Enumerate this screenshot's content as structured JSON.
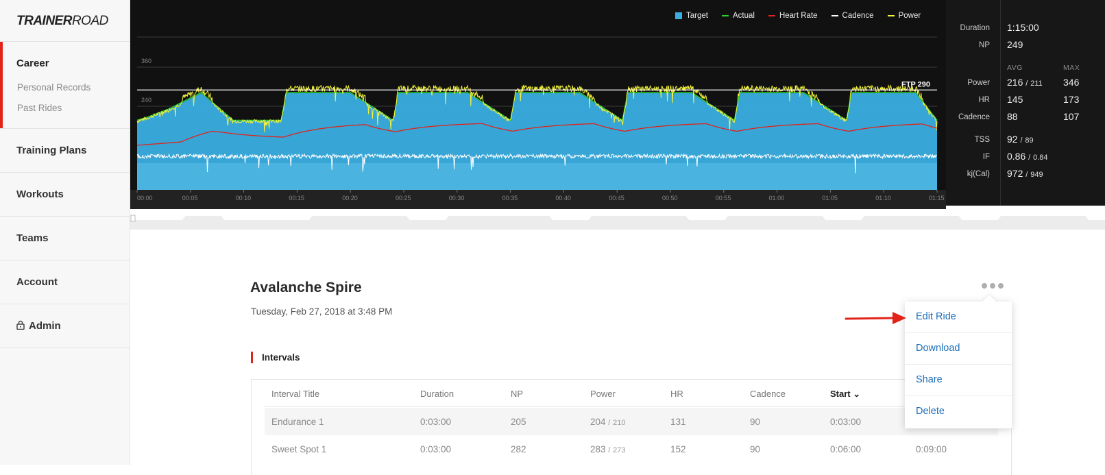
{
  "sidebar": {
    "logo": {
      "bold": "TRAINER",
      "light": "ROAD"
    },
    "career": {
      "label": "Career",
      "items": [
        "Personal Records",
        "Past Rides"
      ]
    },
    "nav": [
      "Training Plans",
      "Workouts",
      "Teams",
      "Account"
    ],
    "admin": "Admin"
  },
  "chart": {
    "legend": [
      "Target",
      "Actual",
      "Heart Rate",
      "Cadence",
      "Power"
    ],
    "ftp_label": "FTP 290",
    "colors": {
      "target": "#3aaee0",
      "actual": "#2bd12b",
      "heart_rate": "#e2231a",
      "cadence": "#ffffff",
      "power": "#f2f23a",
      "background": "#111111"
    }
  },
  "chart_data": {
    "type": "area",
    "x_ticks": [
      "00:00",
      "00:05",
      "00:10",
      "00:15",
      "00:20",
      "00:25",
      "00:30",
      "00:35",
      "00:40",
      "00:45",
      "00:50",
      "00:55",
      "01:00",
      "01:05",
      "01:10",
      "01:15"
    ],
    "y_ticks": [
      240,
      360
    ],
    "ftp": 290,
    "xlim": [
      0,
      75
    ],
    "target_power_profile": {
      "x": [
        0,
        1,
        3,
        6,
        9,
        13.5,
        14,
        20,
        24,
        24.5,
        31,
        35,
        35.5,
        41.5,
        45.5,
        46,
        52,
        56,
        56.5,
        62.5,
        66.5,
        67,
        73,
        75
      ],
      "y": [
        195,
        205,
        230,
        280,
        195,
        195,
        280,
        280,
        195,
        280,
        280,
        195,
        280,
        280,
        195,
        280,
        280,
        195,
        280,
        280,
        195,
        280,
        280,
        195
      ]
    },
    "series": [
      {
        "name": "Target"
      },
      {
        "name": "Actual"
      },
      {
        "name": "Heart Rate"
      },
      {
        "name": "Cadence"
      },
      {
        "name": "Power"
      }
    ]
  },
  "stats": {
    "duration_label": "Duration",
    "duration": "1:15:00",
    "np_label": "NP",
    "np": "249",
    "avg_header": "AVG",
    "max_header": "MAX",
    "power_label": "Power",
    "power_avg": "216",
    "power_avg_target": "211",
    "power_max": "346",
    "hr_label": "HR",
    "hr_avg": "145",
    "hr_max": "173",
    "cadence_label": "Cadence",
    "cadence_avg": "88",
    "cadence_max": "107",
    "tss_label": "TSS",
    "tss": "92",
    "tss_target": "89",
    "if_label": "IF",
    "if": "0.86",
    "if_target": "0.84",
    "kj_label": "kj(Cal)",
    "kj": "972",
    "kj_target": "949",
    "slash": "/"
  },
  "ride": {
    "title": "Avalanche Spire",
    "date": "Tuesday, Feb 27, 2018 at 3:48 PM",
    "intervals_heading": "Intervals"
  },
  "table": {
    "headers": [
      "Interval Title",
      "Duration",
      "NP",
      "Power",
      "HR",
      "Cadence",
      "Start"
    ],
    "sort_indicator": "⌄",
    "rows": [
      {
        "title": "Endurance 1",
        "duration": "0:03:00",
        "np": "205",
        "power": "204",
        "power_target": "210",
        "hr": "131",
        "cadence": "90",
        "start": "0:03:00",
        "end": ""
      },
      {
        "title": "Sweet Spot 1",
        "duration": "0:03:00",
        "np": "282",
        "power": "283",
        "power_target": "273",
        "hr": "152",
        "cadence": "90",
        "start": "0:06:00",
        "end": "0:09:00"
      }
    ]
  },
  "menu": {
    "items": [
      "Edit Ride",
      "Download",
      "Share",
      "Delete"
    ]
  }
}
